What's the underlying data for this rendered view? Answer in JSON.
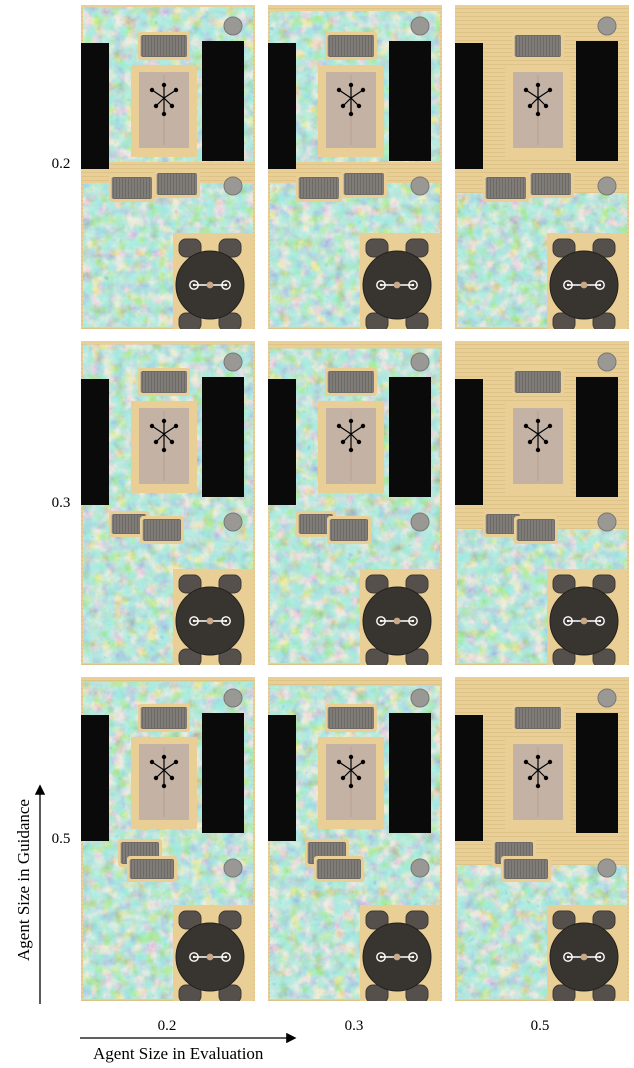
{
  "rows": [
    "0.2",
    "0.3",
    "0.5"
  ],
  "cols": [
    "0.2",
    "0.3",
    "0.5"
  ],
  "y_axis_label": "Agent Size in Guidance",
  "x_axis_label": "Agent Size in Evaluation",
  "colors": {
    "floor": "#e9cf96",
    "heatmap_base": "#7ac8c4",
    "heatmap_low": "#4455b0",
    "heatmap_high": "#d9e05a",
    "heatmap_peak": "#e5542e",
    "furniture_dark": "#0a0a0a",
    "table": "#383430"
  }
}
